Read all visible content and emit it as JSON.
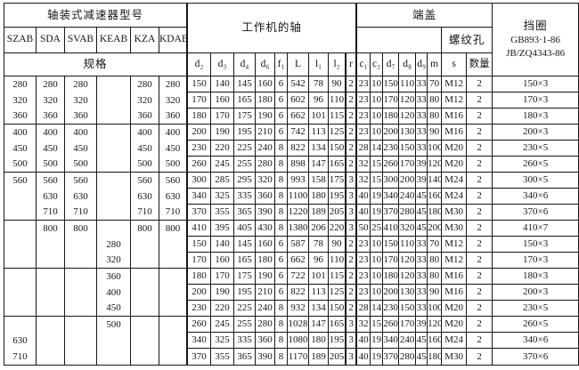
{
  "header": {
    "model_group_title": "轴装式减速器型号",
    "model_columns": [
      "SZAB",
      "SDA",
      "SVAB",
      "KEAB",
      "KZA",
      "KDAB"
    ],
    "spec_label": "规格",
    "work_shaft_title": "工作机的轴",
    "work_shaft_columns": [
      "d₂",
      "d₃",
      "d₄",
      "d₆",
      "f₁",
      "L",
      "l₁",
      "l₂",
      "r"
    ],
    "end_cover_title": "端盖",
    "end_cover_columns": [
      "c₁",
      "c₂",
      "d₇",
      "d₈",
      "d₉",
      "m"
    ],
    "thread_hole_title": "螺纹孔",
    "thread_hole_columns": [
      "s",
      "数量"
    ],
    "retaining_ring": {
      "title": "挡圈",
      "std1": "GB893·1-86",
      "std2": "JB/ZQ4343-86"
    }
  },
  "rows": [
    [
      "280",
      "280",
      "280",
      "",
      "280",
      "280",
      "150",
      "140",
      "145",
      "160",
      "6",
      "542",
      "78",
      "90",
      "2",
      "23",
      "10",
      "150",
      "110",
      "33",
      "70",
      "M12",
      "2",
      "150×3"
    ],
    [
      "320",
      "320",
      "320",
      "",
      "320",
      "320",
      "170",
      "160",
      "165",
      "180",
      "6",
      "602",
      "96",
      "110",
      "2",
      "23",
      "10",
      "170",
      "120",
      "33",
      "80",
      "M12",
      "2",
      "170×3"
    ],
    [
      "360",
      "360",
      "360",
      "",
      "360",
      "360",
      "180",
      "170",
      "175",
      "190",
      "6",
      "662",
      "101",
      "115",
      "2",
      "23",
      "10",
      "180",
      "120",
      "33",
      "80",
      "M16",
      "2",
      "180×3"
    ],
    [
      "400",
      "400",
      "400",
      "",
      "400",
      "400",
      "200",
      "190",
      "195",
      "210",
      "6",
      "742",
      "113",
      "125",
      "2",
      "23",
      "10",
      "200",
      "130",
      "33",
      "90",
      "M16",
      "2",
      "200×3"
    ],
    [
      "450",
      "450",
      "450",
      "",
      "450",
      "450",
      "230",
      "220",
      "225",
      "240",
      "8",
      "822",
      "134",
      "150",
      "2",
      "28",
      "14",
      "230",
      "150",
      "33",
      "100",
      "M20",
      "2",
      "230×5"
    ],
    [
      "500",
      "500",
      "500",
      "",
      "500",
      "500",
      "260",
      "245",
      "255",
      "280",
      "8",
      "898",
      "147",
      "165",
      "2",
      "32",
      "15",
      "260",
      "170",
      "39",
      "120",
      "M20",
      "2",
      "260×5"
    ],
    [
      "560",
      "560",
      "560",
      "",
      "560",
      "560",
      "300",
      "285",
      "295",
      "320",
      "8",
      "993",
      "158",
      "175",
      "3",
      "32",
      "15",
      "300",
      "200",
      "39",
      "140",
      "M24",
      "2",
      "300×5"
    ],
    [
      "",
      "630",
      "630",
      "",
      "630",
      "630",
      "340",
      "325",
      "335",
      "360",
      "8",
      "1100",
      "180",
      "195",
      "3",
      "40",
      "19",
      "340",
      "240",
      "45",
      "160",
      "M24",
      "2",
      "340×6"
    ],
    [
      "",
      "710",
      "710",
      "",
      "710",
      "710",
      "370",
      "355",
      "365",
      "390",
      "8",
      "1220",
      "189",
      "205",
      "3",
      "40",
      "19",
      "370",
      "280",
      "45",
      "180",
      "M30",
      "2",
      "370×6"
    ],
    [
      "",
      "800",
      "800",
      "",
      "800",
      "800",
      "410",
      "395",
      "405",
      "430",
      "8",
      "1380",
      "206",
      "220",
      "3",
      "50",
      "25",
      "410",
      "320",
      "45",
      "200",
      "M30",
      "2",
      "410×7"
    ],
    [
      "",
      "",
      "",
      "280",
      "",
      "",
      "150",
      "140",
      "145",
      "160",
      "6",
      "587",
      "78",
      "90",
      "2",
      "23",
      "10",
      "150",
      "110",
      "33",
      "70",
      "M12",
      "2",
      "150×3"
    ],
    [
      "",
      "",
      "",
      "320",
      "",
      "",
      "170",
      "160",
      "165",
      "180",
      "6",
      "662",
      "96",
      "110",
      "2",
      "23",
      "10",
      "170",
      "120",
      "33",
      "80",
      "M12",
      "2",
      "170×3"
    ],
    [
      "",
      "",
      "",
      "360",
      "",
      "",
      "180",
      "170",
      "175",
      "190",
      "6",
      "722",
      "101",
      "115",
      "2",
      "23",
      "10",
      "180",
      "120",
      "33",
      "80",
      "M16",
      "2",
      "180×3"
    ],
    [
      "",
      "",
      "",
      "400",
      "",
      "",
      "200",
      "190",
      "195",
      "210",
      "6",
      "822",
      "113",
      "125",
      "2",
      "23",
      "10",
      "200",
      "130",
      "33",
      "90",
      "M16",
      "2",
      "200×3"
    ],
    [
      "",
      "",
      "",
      "450",
      "",
      "",
      "230",
      "220",
      "225",
      "240",
      "8",
      "932",
      "134",
      "150",
      "2",
      "28",
      "14",
      "230",
      "150",
      "33",
      "100",
      "M20",
      "2",
      "230×5"
    ],
    [
      "",
      "",
      "",
      "500",
      "",
      "",
      "260",
      "245",
      "255",
      "280",
      "8",
      "1028",
      "147",
      "165",
      "3",
      "32",
      "15",
      "260",
      "170",
      "39",
      "120",
      "M20",
      "2",
      "260×5"
    ],
    [
      "630",
      "",
      "",
      "",
      "",
      "",
      "340",
      "325",
      "335",
      "360",
      "8",
      "1080",
      "180",
      "195",
      "3",
      "40",
      "19",
      "340",
      "240",
      "45",
      "160",
      "M24",
      "2",
      "340×6"
    ],
    [
      "710",
      "",
      "",
      "",
      "",
      "",
      "370",
      "355",
      "365",
      "390",
      "8",
      "1170",
      "189",
      "205",
      "3",
      "40",
      "19",
      "370",
      "280",
      "45",
      "180",
      "M30",
      "2",
      "370×6"
    ]
  ]
}
